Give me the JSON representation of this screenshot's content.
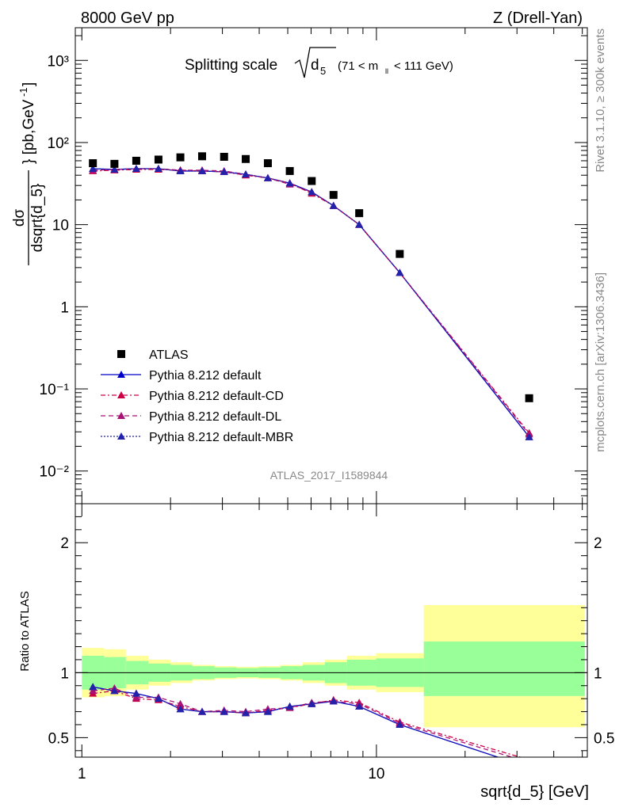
{
  "header": {
    "left": "8000 GeV pp",
    "right": "Z (Drell-Yan)"
  },
  "side_text": {
    "top": "Rivet 3.1.10, ≥ 300k events",
    "bottom": "mcplots.cern.ch [arXiv:1306.3436]"
  },
  "colors": {
    "data": "#000000",
    "default": "#0000cc",
    "cd": "#cc0044",
    "dl": "#aa1177",
    "mbr": "#2222aa",
    "band_inner": "#99ff99",
    "band_outer": "#ffff99"
  },
  "chart_data": [
    {
      "type": "scatter",
      "panel": "main",
      "title": "Splitting scale",
      "title_symbol": "√d5",
      "title_range": "(71 < m_ll < 111 GeV)",
      "ylabel": "dσ/dsqrt{d_5} [pb,GeV⁻¹]",
      "yscale": "log",
      "xscale": "log",
      "xlim": [
        0.95,
        52
      ],
      "ylim": [
        0.004,
        2500
      ],
      "y_ticks": [
        "10⁻²",
        "10⁻¹",
        "1",
        "10",
        "10²",
        "10³"
      ],
      "watermark": "ATLAS_2017_I1589844",
      "legend_position": "lower-left",
      "x": [
        1.09,
        1.29,
        1.53,
        1.82,
        2.16,
        2.56,
        3.04,
        3.6,
        4.28,
        5.08,
        6.03,
        7.15,
        8.74,
        12.0,
        33.0
      ],
      "bin_edges": [
        1.0,
        1.19,
        1.41,
        1.68,
        2.0,
        2.37,
        2.82,
        3.35,
        3.98,
        4.73,
        5.62,
        6.68,
        7.94,
        9.97,
        14.48,
        51.0
      ],
      "series": [
        {
          "name": "ATLAS",
          "values": [
            56,
            55,
            60,
            62,
            66,
            68,
            67,
            63,
            56,
            45,
            34,
            23,
            13.8,
            4.4,
            0.077
          ]
        },
        {
          "name": "Pythia 8.212 default",
          "values": [
            48,
            47,
            48,
            48,
            45,
            45,
            44,
            41,
            37,
            32,
            25,
            17,
            10,
            2.6,
            0.026
          ]
        },
        {
          "name": "Pythia 8.212 default-CD",
          "values": [
            45,
            46,
            47,
            47,
            46,
            45,
            44,
            40,
            37,
            32,
            24,
            17,
            10,
            2.6,
            0.029
          ]
        },
        {
          "name": "Pythia 8.212 default-DL",
          "values": [
            46,
            47,
            48,
            48,
            46,
            46,
            45,
            41,
            37,
            31,
            25,
            17,
            10,
            2.6,
            0.028
          ]
        },
        {
          "name": "Pythia 8.212 default-MBR",
          "values": [
            48,
            47,
            48,
            48,
            45,
            45,
            44,
            41,
            37,
            32,
            25,
            17,
            10,
            2.6,
            0.026
          ]
        }
      ]
    },
    {
      "type": "line",
      "panel": "ratio",
      "ylabel": "Ratio to ATLAS",
      "xlabel": "sqrt{d_5} [GeV]",
      "xscale": "log",
      "xlim": [
        0.95,
        52
      ],
      "ylim": [
        0.35,
        2.3
      ],
      "y_ticks": [
        "0.5",
        "1",
        "2"
      ],
      "x_ticks": [
        "1",
        "10"
      ],
      "x": [
        1.09,
        1.29,
        1.53,
        1.82,
        2.16,
        2.56,
        3.04,
        3.6,
        4.28,
        5.08,
        6.03,
        7.15,
        8.74,
        12.0,
        33.0
      ],
      "band_inner_low": [
        0.87,
        0.88,
        0.91,
        0.93,
        0.94,
        0.95,
        0.96,
        0.965,
        0.96,
        0.95,
        0.94,
        0.92,
        0.9,
        0.89,
        0.82
      ],
      "band_inner_high": [
        1.13,
        1.12,
        1.09,
        1.07,
        1.06,
        1.05,
        1.04,
        1.035,
        1.04,
        1.05,
        1.06,
        1.08,
        1.1,
        1.11,
        1.24
      ],
      "band_outer_low": [
        0.81,
        0.82,
        0.87,
        0.9,
        0.92,
        0.94,
        0.95,
        0.955,
        0.95,
        0.94,
        0.92,
        0.9,
        0.87,
        0.85,
        0.58
      ],
      "band_outer_high": [
        1.19,
        1.18,
        1.13,
        1.1,
        1.08,
        1.06,
        1.05,
        1.045,
        1.05,
        1.06,
        1.08,
        1.1,
        1.13,
        1.15,
        1.52
      ],
      "series": [
        {
          "name": "Pythia 8.212 default",
          "values": [
            0.89,
            0.86,
            0.84,
            0.8,
            0.72,
            0.7,
            0.7,
            0.69,
            0.7,
            0.74,
            0.76,
            0.78,
            0.74,
            0.6,
            0.27
          ]
        },
        {
          "name": "Pythia 8.212 default-CD",
          "values": [
            0.84,
            0.86,
            0.8,
            0.79,
            0.74,
            0.7,
            0.7,
            0.69,
            0.71,
            0.73,
            0.76,
            0.79,
            0.77,
            0.62,
            0.33
          ]
        },
        {
          "name": "Pythia 8.212 default-DL",
          "values": [
            0.86,
            0.88,
            0.81,
            0.81,
            0.76,
            0.7,
            0.71,
            0.7,
            0.72,
            0.73,
            0.77,
            0.78,
            0.76,
            0.61,
            0.31
          ]
        },
        {
          "name": "Pythia 8.212 default-MBR",
          "values": [
            0.89,
            0.86,
            0.84,
            0.8,
            0.72,
            0.7,
            0.7,
            0.69,
            0.7,
            0.74,
            0.76,
            0.78,
            0.74,
            0.6,
            0.27
          ]
        }
      ]
    }
  ]
}
